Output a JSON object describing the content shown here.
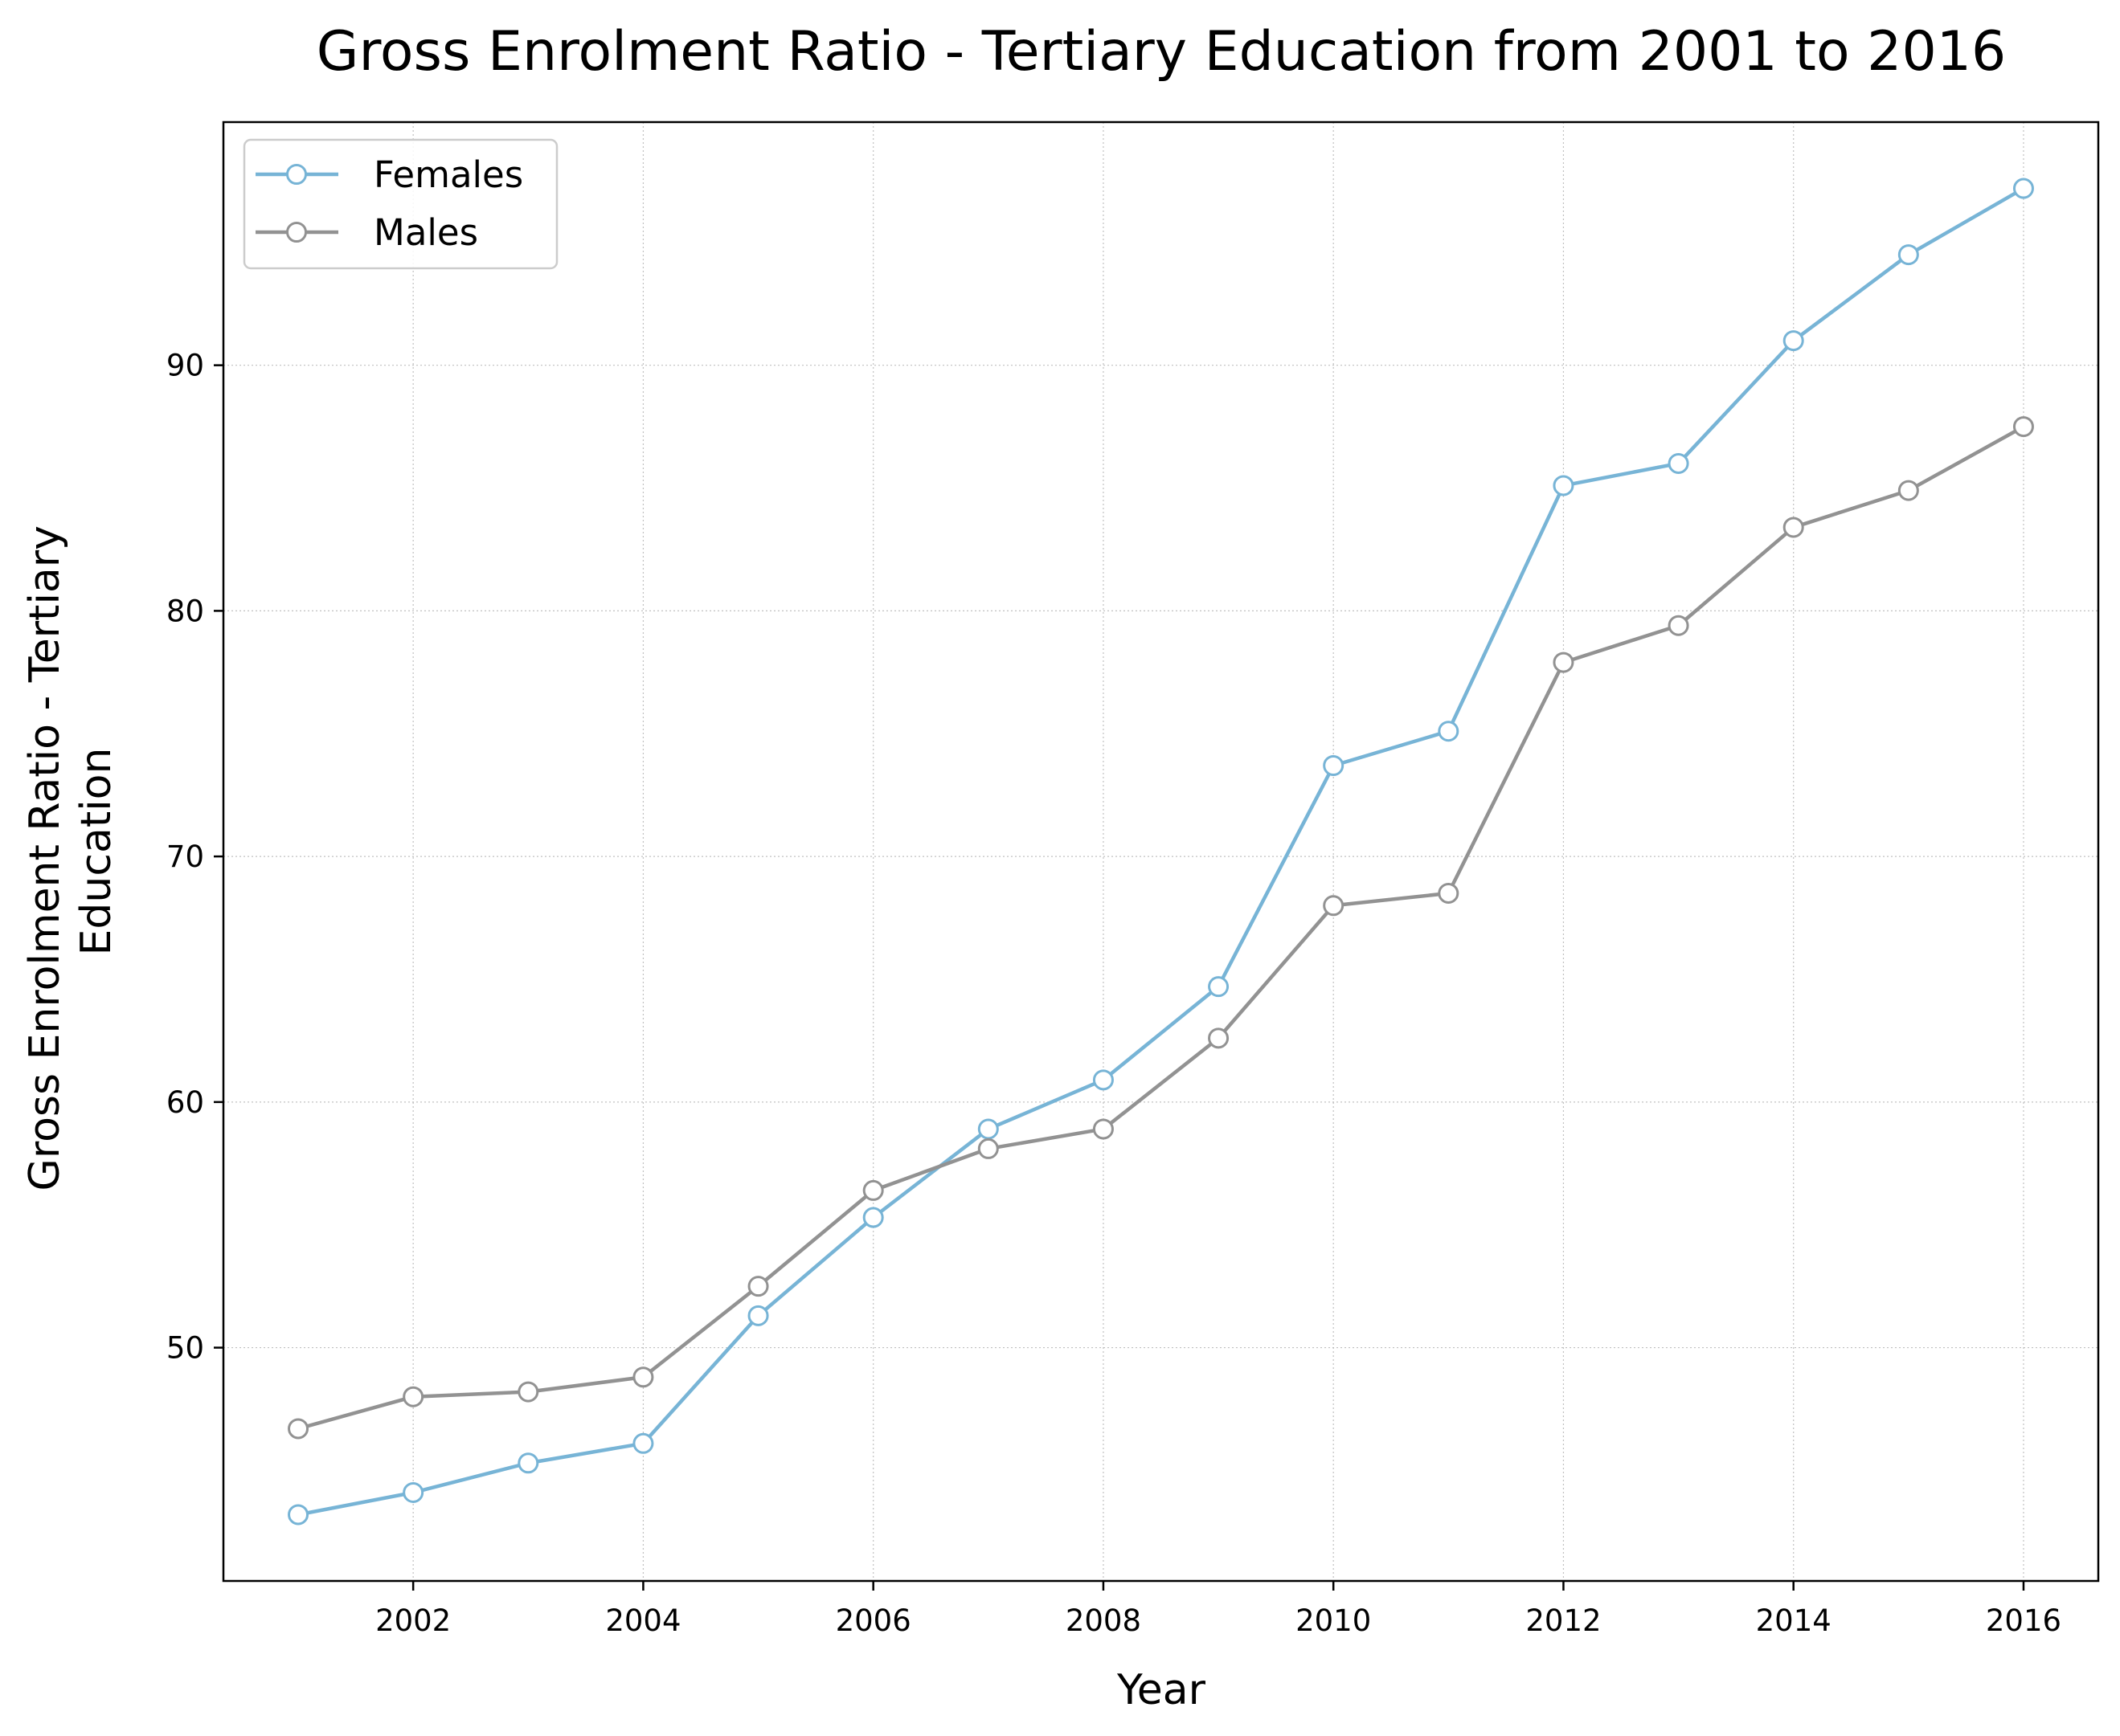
{
  "chart_data": {
    "type": "line",
    "title": "Gross Enrolment Ratio - Tertiary Education from 2001 to 2016",
    "xlabel": "Year",
    "ylabel_lines": [
      "Gross Enrolment Ratio - Tertiary",
      "Education"
    ],
    "x": [
      2001,
      2002,
      2003,
      2004,
      2005,
      2006,
      2007,
      2008,
      2009,
      2010,
      2011,
      2012,
      2013,
      2014,
      2015,
      2016
    ],
    "xlim": [
      2000.35,
      2016.65
    ],
    "ylim": [
      40.5,
      99.9
    ],
    "xticks": [
      2002,
      2004,
      2006,
      2008,
      2010,
      2012,
      2014,
      2016
    ],
    "yticks": [
      50,
      60,
      70,
      80,
      90
    ],
    "grid": true,
    "legend_position": "top-left",
    "series": [
      {
        "name": "Females",
        "color": "#77b4d6",
        "values": [
          43.2,
          44.1,
          45.3,
          46.1,
          51.3,
          55.3,
          58.9,
          60.9,
          64.7,
          73.7,
          75.1,
          85.1,
          86.0,
          91.0,
          94.5,
          97.2
        ]
      },
      {
        "name": "Males",
        "color": "#929292",
        "values": [
          46.7,
          48.0,
          48.2,
          48.8,
          52.5,
          56.4,
          58.1,
          58.9,
          62.6,
          68.0,
          68.5,
          77.9,
          79.4,
          83.4,
          84.9,
          87.5
        ]
      }
    ]
  }
}
